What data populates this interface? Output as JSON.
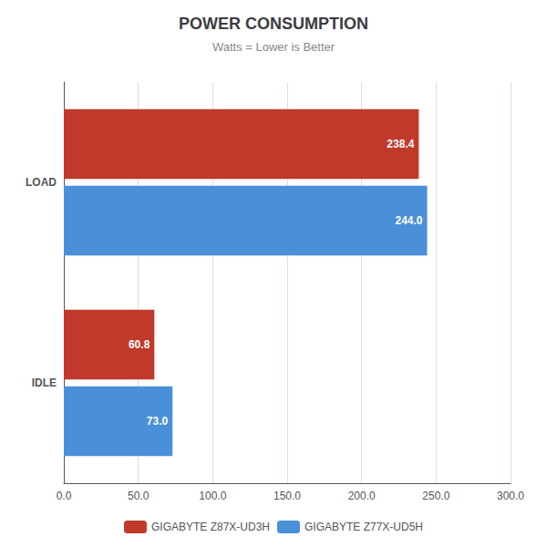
{
  "chart_data": {
    "type": "bar",
    "orientation": "horizontal",
    "title": "POWER CONSUMPTION",
    "subtitle": "Watts = Lower is Better",
    "categories": [
      "LOAD",
      "IDLE"
    ],
    "series": [
      {
        "name": "GIGABYTE Z87X-UD3H",
        "color": "#c0392b",
        "values": [
          238.4,
          60.8
        ]
      },
      {
        "name": "GIGABYTE Z77X-UD5H",
        "color": "#4a90d9",
        "values": [
          244.0,
          73.0
        ],
        "value_labels": [
          "244.0",
          "73.0"
        ]
      }
    ],
    "xlim": [
      0,
      300
    ],
    "xticks": [
      {
        "value": 0,
        "label": "0.0"
      },
      {
        "value": 50,
        "label": "50.0"
      },
      {
        "value": 100,
        "label": "100.0"
      },
      {
        "value": 150,
        "label": "150.0"
      },
      {
        "value": 200,
        "label": "200.0"
      },
      {
        "value": 250,
        "label": "250.0"
      },
      {
        "value": 300,
        "label": "300.0"
      }
    ],
    "grid": true,
    "legend": "bottom",
    "data_labels": true
  }
}
